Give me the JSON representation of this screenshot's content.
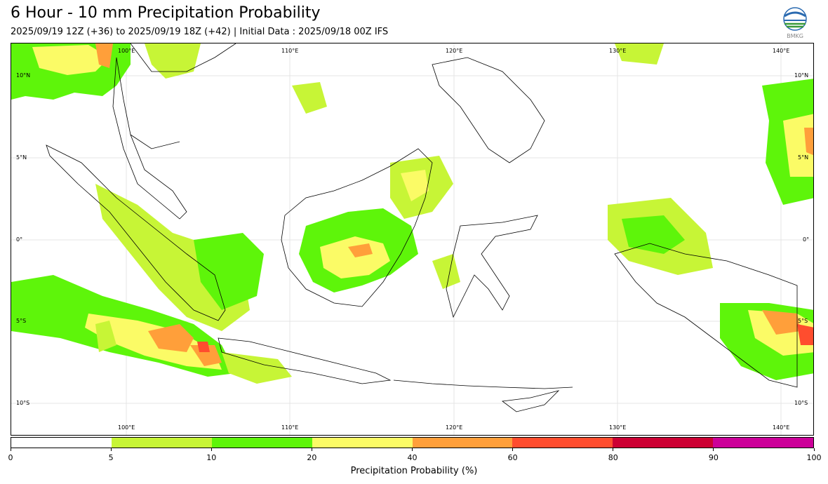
{
  "title": "6 Hour - 10 mm Precipitation Probability",
  "subtitle": "2025/09/19 12Z (+36) to 2025/09/19 18Z (+42) | Initial Data : 2025/09/18 00Z IFS",
  "logo": {
    "text": "BMKG",
    "icon": "bmkg-logo-icon"
  },
  "map": {
    "lon_labels": [
      "100°E",
      "110°E",
      "120°E",
      "130°E",
      "140°E"
    ],
    "lat_labels": [
      "10°N",
      "5°N",
      "0°",
      "5°S",
      "10°S"
    ],
    "grid": true,
    "colors": {
      "ocean": "#ffffff",
      "land_outline": "#000000"
    }
  },
  "colorbar": {
    "label": "Precipitation Probability (%)",
    "ticks": [
      "0",
      "5",
      "10",
      "20",
      "40",
      "60",
      "80",
      "90",
      "100"
    ],
    "colors": [
      "#ffffff",
      "#c7f536",
      "#5ef50a",
      "#fbfb66",
      "#ff9f3a",
      "#ff4d2e",
      "#cc0033",
      "#cc0099"
    ]
  }
}
